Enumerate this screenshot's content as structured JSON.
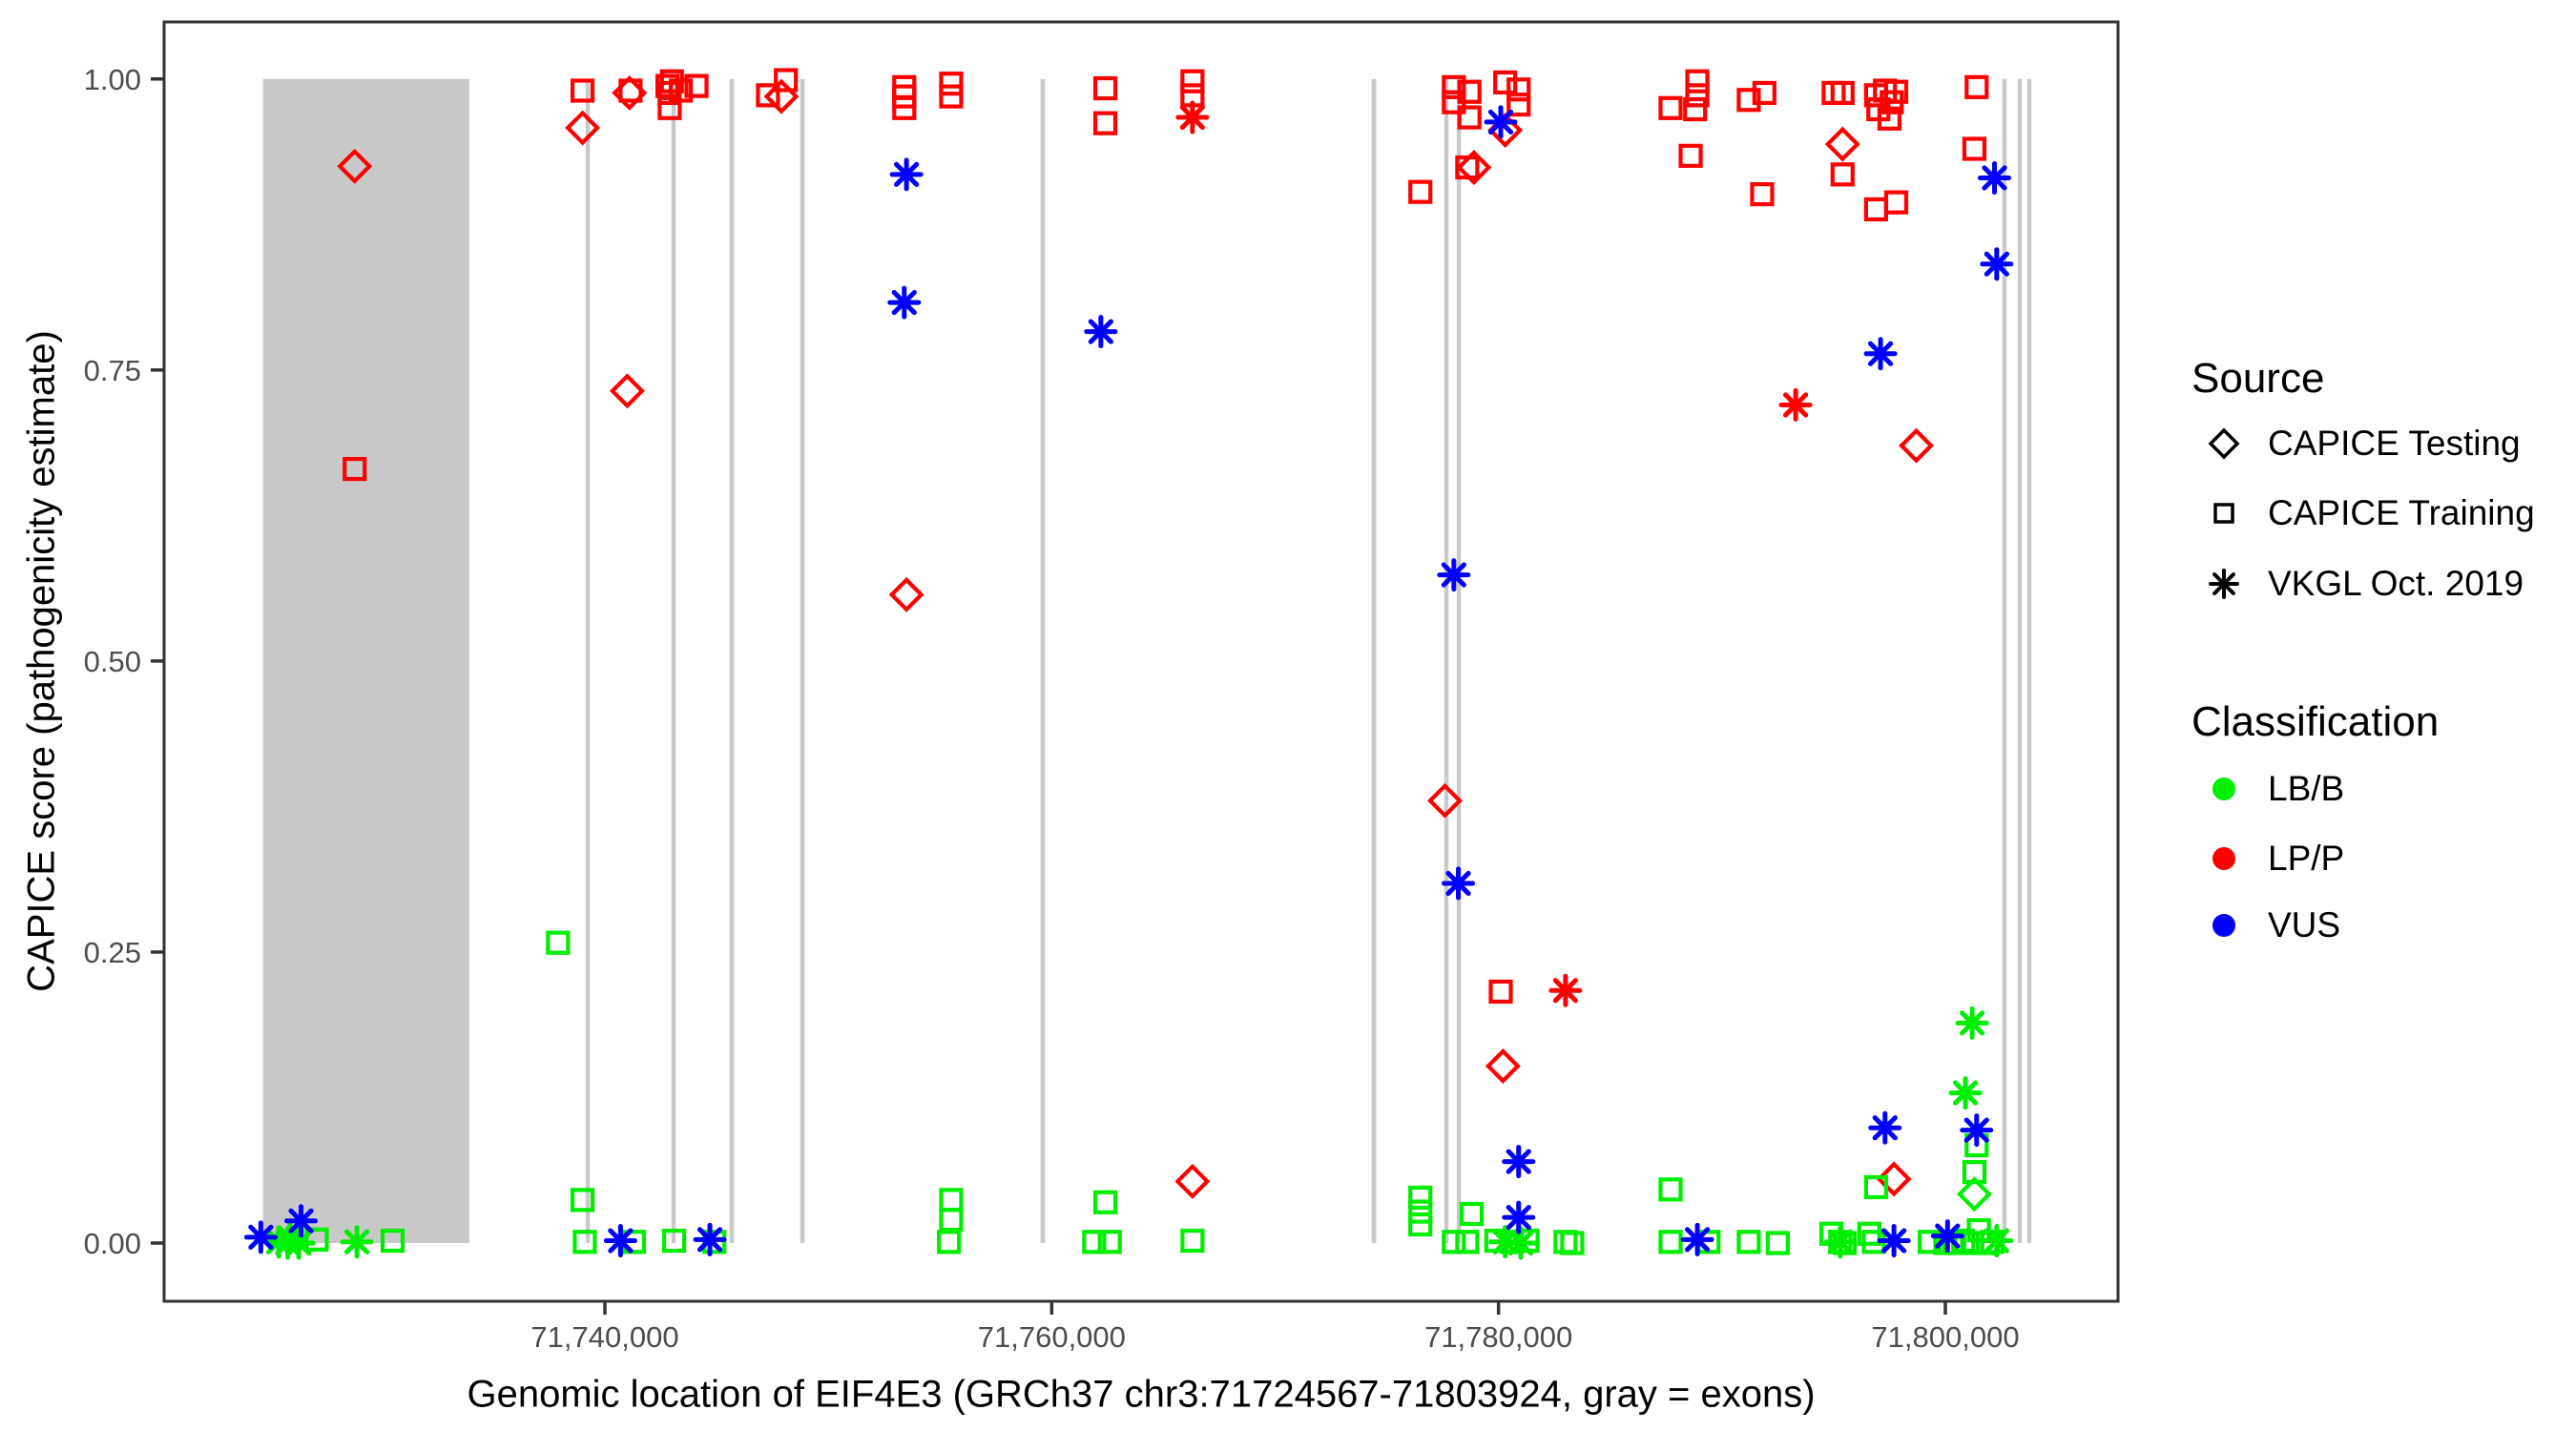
{
  "legend": {
    "source": {
      "title": "Source",
      "items": [
        {
          "label": "CAPICE Testing",
          "shape": "diamond"
        },
        {
          "label": "CAPICE Training",
          "shape": "square"
        },
        {
          "label": "VKGL Oct. 2019",
          "shape": "asterisk"
        }
      ]
    },
    "classification": {
      "title": "Classification",
      "items": [
        {
          "label": "LB/B",
          "color": "#00EE00"
        },
        {
          "label": "LP/P",
          "color": "#FF0000"
        },
        {
          "label": "VUS",
          "color": "#0000FF"
        }
      ]
    }
  },
  "chart_data": {
    "type": "scatter",
    "title": "",
    "xlabel": "Genomic location of EIF4E3 (GRCh37 chr3:71724567-71803924, gray = exons)",
    "ylabel": "CAPICE score (pathogenicity estimate)",
    "xlim": [
      71720270,
      71807730
    ],
    "ylim": [
      -0.05,
      1.049
    ],
    "grid": "off",
    "legend_position": "right",
    "x_ticks": [
      {
        "value": 71740000,
        "label": "71,740,000"
      },
      {
        "value": 71760000,
        "label": "71,760,000"
      },
      {
        "value": 71780000,
        "label": "71,780,000"
      },
      {
        "value": 71800000,
        "label": "71,800,000"
      }
    ],
    "y_ticks": [
      {
        "value": 0.0,
        "label": "0.00"
      },
      {
        "value": 0.25,
        "label": "0.25"
      },
      {
        "value": 0.5,
        "label": "0.50"
      },
      {
        "value": 0.75,
        "label": "0.75"
      },
      {
        "value": 1.0,
        "label": "1.00"
      }
    ],
    "exons_note": "gray = exons, bands span score 0 to 1",
    "exon_color": "#C9C9C9",
    "exon_blocks": [
      [
        71724700,
        71733930
      ],
      [
        71739140,
        71739330
      ],
      [
        71742980,
        71743170
      ],
      [
        71745580,
        71745780
      ],
      [
        71748740,
        71748940
      ],
      [
        71759500,
        71759700
      ],
      [
        71774320,
        71774520
      ],
      [
        71777570,
        71777760
      ],
      [
        71778130,
        71778320
      ],
      [
        71802550,
        71802740
      ],
      [
        71803240,
        71803420
      ],
      [
        71803660,
        71803850
      ]
    ],
    "series": [
      {
        "name": "CAPICE Testing / LP/P",
        "source": "CAPICE Testing",
        "classification": "LP/P",
        "shape": "diamond",
        "color": "#FF0000",
        "points": [
          [
            71728800,
            0.925
          ],
          [
            71739000,
            0.958
          ],
          [
            71741100,
            0.988
          ],
          [
            71741000,
            0.732
          ],
          [
            71747900,
            0.985
          ],
          [
            71753500,
            0.557
          ],
          [
            71766300,
            0.053
          ],
          [
            71777600,
            0.38
          ],
          [
            71778900,
            0.924
          ],
          [
            71780300,
            0.956
          ],
          [
            71780200,
            0.152
          ],
          [
            71795400,
            0.944
          ],
          [
            71797700,
            0.055
          ],
          [
            71798700,
            0.685
          ]
        ]
      },
      {
        "name": "CAPICE Training / LP/P",
        "source": "CAPICE Training",
        "classification": "LP/P",
        "shape": "square",
        "color": "#FF0000",
        "points": [
          [
            71728800,
            0.665
          ],
          [
            71739000,
            0.99
          ],
          [
            71741150,
            0.99
          ],
          [
            71742800,
            0.994
          ],
          [
            71742900,
            0.988
          ],
          [
            71743000,
            0.998
          ],
          [
            71743400,
            0.99
          ],
          [
            71744100,
            0.994
          ],
          [
            71742900,
            0.975
          ],
          [
            71747300,
            0.986
          ],
          [
            71748100,
            0.999
          ],
          [
            71753400,
            0.993
          ],
          [
            71753400,
            0.985
          ],
          [
            71753400,
            0.975
          ],
          [
            71755500,
            0.996
          ],
          [
            71755500,
            0.985
          ],
          [
            71762400,
            0.992
          ],
          [
            71762400,
            0.962
          ],
          [
            71766300,
            0.998
          ],
          [
            71766300,
            0.986
          ],
          [
            71776500,
            0.903
          ],
          [
            71778000,
            0.993
          ],
          [
            71778700,
            0.989
          ],
          [
            71778000,
            0.98
          ],
          [
            71778700,
            0.967
          ],
          [
            71780300,
            0.997
          ],
          [
            71780900,
            0.991
          ],
          [
            71780900,
            0.978
          ],
          [
            71778600,
            0.924
          ],
          [
            71780100,
            0.216
          ],
          [
            71787700,
            0.975
          ],
          [
            71788900,
            0.998
          ],
          [
            71788900,
            0.986
          ],
          [
            71788800,
            0.974
          ],
          [
            71788600,
            0.934
          ],
          [
            71791200,
            0.982
          ],
          [
            71791900,
            0.988
          ],
          [
            71791800,
            0.901
          ],
          [
            71795000,
            0.988
          ],
          [
            71795400,
            0.988
          ],
          [
            71795400,
            0.918
          ],
          [
            71796900,
            0.986
          ],
          [
            71797300,
            0.99
          ],
          [
            71797800,
            0.989
          ],
          [
            71797600,
            0.98
          ],
          [
            71797000,
            0.974
          ],
          [
            71797500,
            0.966
          ],
          [
            71796900,
            0.888
          ],
          [
            71797800,
            0.894
          ],
          [
            71801400,
            0.993
          ],
          [
            71801300,
            0.94
          ]
        ]
      },
      {
        "name": "VKGL Oct. 2019 / LP/P",
        "source": "VKGL Oct. 2019",
        "classification": "LP/P",
        "shape": "asterisk",
        "color": "#FF0000",
        "points": [
          [
            71766300,
            0.967
          ],
          [
            71783000,
            0.217
          ],
          [
            71793300,
            0.72
          ]
        ]
      },
      {
        "name": "CAPICE Testing / LB/B",
        "source": "CAPICE Testing",
        "classification": "LB/B",
        "shape": "diamond",
        "color": "#00EE00",
        "points": [
          [
            71801300,
            0.042
          ]
        ]
      },
      {
        "name": "CAPICE Training / LB/B",
        "source": "CAPICE Training",
        "classification": "LB/B",
        "shape": "square",
        "color": "#00EE00",
        "points": [
          [
            71727100,
            0.003
          ],
          [
            71730500,
            0.002
          ],
          [
            71737900,
            0.258
          ],
          [
            71739000,
            0.037
          ],
          [
            71739100,
            0.001
          ],
          [
            71741300,
            0.001
          ],
          [
            71743100,
            0.002
          ],
          [
            71744900,
            0.001
          ],
          [
            71755500,
            0.037
          ],
          [
            71755500,
            0.02
          ],
          [
            71755400,
            0.001
          ],
          [
            71762400,
            0.035
          ],
          [
            71761900,
            0.001
          ],
          [
            71762600,
            0.001
          ],
          [
            71766300,
            0.002
          ],
          [
            71776500,
            0.039
          ],
          [
            71776500,
            0.027
          ],
          [
            71776500,
            0.016
          ],
          [
            71778800,
            0.025
          ],
          [
            71778000,
            0.001
          ],
          [
            71778600,
            0.001
          ],
          [
            71779900,
            0.002
          ],
          [
            71780600,
            0.001
          ],
          [
            71781300,
            0.002
          ],
          [
            71783000,
            0.001
          ],
          [
            71783300,
            0.0
          ],
          [
            71787700,
            0.046
          ],
          [
            71787700,
            0.001
          ],
          [
            71789400,
            0.001
          ],
          [
            71791200,
            0.001
          ],
          [
            71792500,
            0.0
          ],
          [
            71794900,
            0.008
          ],
          [
            71795300,
            0.001
          ],
          [
            71795500,
            0.0
          ],
          [
            71796600,
            0.008
          ],
          [
            71796800,
            0.001
          ],
          [
            71796900,
            0.048
          ],
          [
            71801300,
            0.061
          ],
          [
            71801400,
            0.084
          ],
          [
            71799300,
            0.001
          ],
          [
            71800000,
            0.0
          ],
          [
            71800400,
            0.0
          ],
          [
            71800800,
            0.002
          ],
          [
            71801200,
            0.0
          ],
          [
            71801500,
            0.011
          ],
          [
            71801900,
            0.0
          ],
          [
            71802100,
            0.001
          ]
        ]
      },
      {
        "name": "VKGL Oct. 2019 / LB/B",
        "source": "VKGL Oct. 2019",
        "classification": "LB/B",
        "shape": "asterisk",
        "color": "#00EE00",
        "points": [
          [
            71725400,
            0.001
          ],
          [
            71725900,
            0.004
          ],
          [
            71726300,
            0.0
          ],
          [
            71725800,
            0.0
          ],
          [
            71728900,
            0.001
          ],
          [
            71780300,
            0.001
          ],
          [
            71781000,
            0.0
          ],
          [
            71795300,
            0.001
          ],
          [
            71802300,
            0.002
          ],
          [
            71801200,
            0.189
          ],
          [
            71800900,
            0.129
          ]
        ]
      },
      {
        "name": "VKGL Oct. 2019 / VUS",
        "source": "VKGL Oct. 2019",
        "classification": "VUS",
        "shape": "asterisk",
        "color": "#0000FF",
        "points": [
          [
            71753500,
            0.918
          ],
          [
            71753400,
            0.808
          ],
          [
            71762200,
            0.783
          ],
          [
            71780100,
            0.963
          ],
          [
            71802200,
            0.915
          ],
          [
            71802300,
            0.841
          ],
          [
            71797100,
            0.764
          ],
          [
            71778200,
            0.309
          ],
          [
            71778000,
            0.574
          ],
          [
            71780900,
            0.07
          ],
          [
            71780900,
            0.022
          ],
          [
            71797300,
            0.099
          ],
          [
            71801400,
            0.097
          ],
          [
            71724600,
            0.005
          ],
          [
            71726400,
            0.019
          ],
          [
            71740700,
            0.002
          ],
          [
            71744700,
            0.003
          ],
          [
            71788900,
            0.003
          ],
          [
            71797700,
            0.002
          ],
          [
            71800100,
            0.006
          ]
        ]
      }
    ]
  }
}
